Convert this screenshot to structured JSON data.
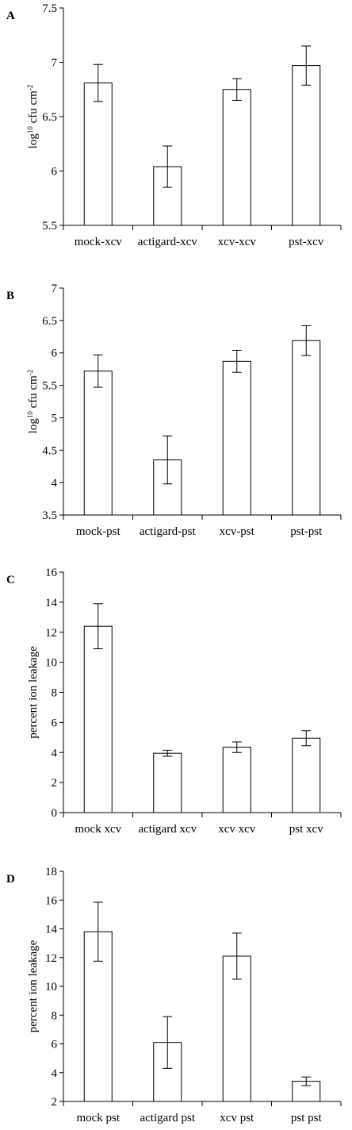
{
  "chart_data": [
    {
      "type": "bar",
      "panel_label": "A",
      "title": "",
      "ylabel_prefix": "log",
      "ylabel_sub": "10",
      "ylabel_main": " cfu cm",
      "ylabel_sup": "-2",
      "categories": [
        "mock-xcv",
        "actigard-xcv",
        "xcv-xcv",
        "pst-xcv"
      ],
      "values": [
        6.81,
        6.04,
        6.75,
        6.97
      ],
      "errors": [
        0.17,
        0.19,
        0.1,
        0.18
      ],
      "ylim": [
        5.5,
        7.5
      ],
      "yticks": [
        5.5,
        6,
        6.5,
        7,
        7.5
      ],
      "ytick_labels": [
        "5.5",
        "6",
        "6.5",
        "7",
        "7.5"
      ]
    },
    {
      "type": "bar",
      "panel_label": "B",
      "title": "",
      "ylabel_prefix": "log",
      "ylabel_sub": "10",
      "ylabel_main": " cfu cm",
      "ylabel_sup": "-2",
      "categories": [
        "mock-pst",
        "actigard-pst",
        "xcv-pst",
        "pst-pst"
      ],
      "values": [
        5.72,
        4.35,
        5.87,
        6.19
      ],
      "errors": [
        0.25,
        0.37,
        0.17,
        0.23
      ],
      "ylim": [
        3.5,
        7
      ],
      "yticks": [
        3.5,
        4,
        4.5,
        5,
        5.5,
        6,
        6.5,
        7
      ],
      "ytick_labels": [
        "3.5",
        "4",
        "4.5",
        "5",
        "5.5",
        "6",
        "6.5",
        "7"
      ]
    },
    {
      "type": "bar",
      "panel_label": "C",
      "title": "",
      "ylabel": "percent ion leakage",
      "categories": [
        "mock xcv",
        "actigard xcv",
        "xcv xcv",
        "pst xcv"
      ],
      "values": [
        12.4,
        3.95,
        4.35,
        4.95
      ],
      "errors": [
        1.5,
        0.2,
        0.35,
        0.5
      ],
      "ylim": [
        0,
        16
      ],
      "yticks": [
        0,
        2,
        4,
        6,
        8,
        10,
        12,
        14,
        16
      ],
      "ytick_labels": [
        "0",
        "2",
        "4",
        "6",
        "8",
        "10",
        "12",
        "14",
        "16"
      ]
    },
    {
      "type": "bar",
      "panel_label": "D",
      "title": "",
      "ylabel": "percent ion leakage",
      "categories": [
        "mock pst",
        "actigard pst",
        "xcv pst",
        "pst pst"
      ],
      "values": [
        13.8,
        6.1,
        12.1,
        3.4
      ],
      "errors": [
        2.05,
        1.8,
        1.6,
        0.3
      ],
      "ylim": [
        2,
        18
      ],
      "yticks": [
        2,
        4,
        6,
        8,
        10,
        12,
        14,
        16,
        18
      ],
      "ytick_labels": [
        "2",
        "4",
        "6",
        "8",
        "10",
        "12",
        "14",
        "16",
        "18"
      ]
    }
  ]
}
